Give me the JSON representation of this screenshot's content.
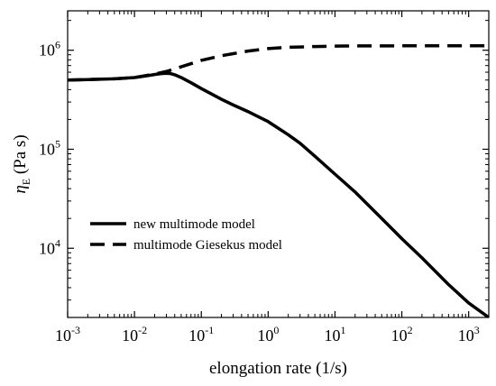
{
  "chart_data": {
    "type": "line",
    "xscale": "log",
    "yscale": "log",
    "xlim": [
      0.001,
      2000
    ],
    "ylim": [
      2000,
      2500000
    ],
    "xlabel": "elongation rate (1/s)",
    "ylabel_main": "η",
    "ylabel_sub": "E",
    "ylabel_unit": " (Pa s)",
    "x_ticks": [
      {
        "value": 0.001,
        "base": "10",
        "exp": "-3"
      },
      {
        "value": 0.01,
        "base": "10",
        "exp": "-2"
      },
      {
        "value": 0.1,
        "base": "10",
        "exp": "-1"
      },
      {
        "value": 1,
        "base": "10",
        "exp": "0"
      },
      {
        "value": 10,
        "base": "10",
        "exp": "1"
      },
      {
        "value": 100,
        "base": "10",
        "exp": "2"
      },
      {
        "value": 1000,
        "base": "10",
        "exp": "3"
      }
    ],
    "y_ticks": [
      {
        "value": 10000,
        "base": "10",
        "exp": "4"
      },
      {
        "value": 100000,
        "base": "10",
        "exp": "5"
      },
      {
        "value": 1000000,
        "base": "10",
        "exp": "6"
      }
    ],
    "grid": false,
    "legend_position": "lower-left",
    "series": [
      {
        "name": "new multimode model",
        "style": "solid",
        "color": "#000000",
        "x": [
          0.001,
          0.002,
          0.005,
          0.01,
          0.015,
          0.02,
          0.025,
          0.03,
          0.035,
          0.04,
          0.05,
          0.07,
          0.1,
          0.2,
          0.3,
          0.5,
          1,
          2,
          3,
          5,
          10,
          20,
          50,
          100,
          200,
          500,
          1000,
          2000
        ],
        "y": [
          500000,
          505000,
          515000,
          530000,
          550000,
          568000,
          580000,
          585000,
          580000,
          565000,
          530000,
          470000,
          410000,
          320000,
          280000,
          240000,
          190000,
          140000,
          115000,
          85000,
          56000,
          37000,
          20000,
          12500,
          8000,
          4300,
          2800,
          2000
        ]
      },
      {
        "name": "multimode Giesekus model",
        "style": "dashed",
        "color": "#000000",
        "x": [
          0.001,
          0.002,
          0.005,
          0.01,
          0.02,
          0.03,
          0.05,
          0.1,
          0.2,
          0.5,
          1,
          2,
          5,
          10,
          20,
          50,
          100,
          200,
          500,
          1000,
          2000
        ],
        "y": [
          500000,
          505000,
          515000,
          530000,
          575000,
          610000,
          680000,
          790000,
          880000,
          980000,
          1040000,
          1070000,
          1090000,
          1100000,
          1105000,
          1105000,
          1108000,
          1110000,
          1110000,
          1110000,
          1110000
        ]
      }
    ]
  }
}
